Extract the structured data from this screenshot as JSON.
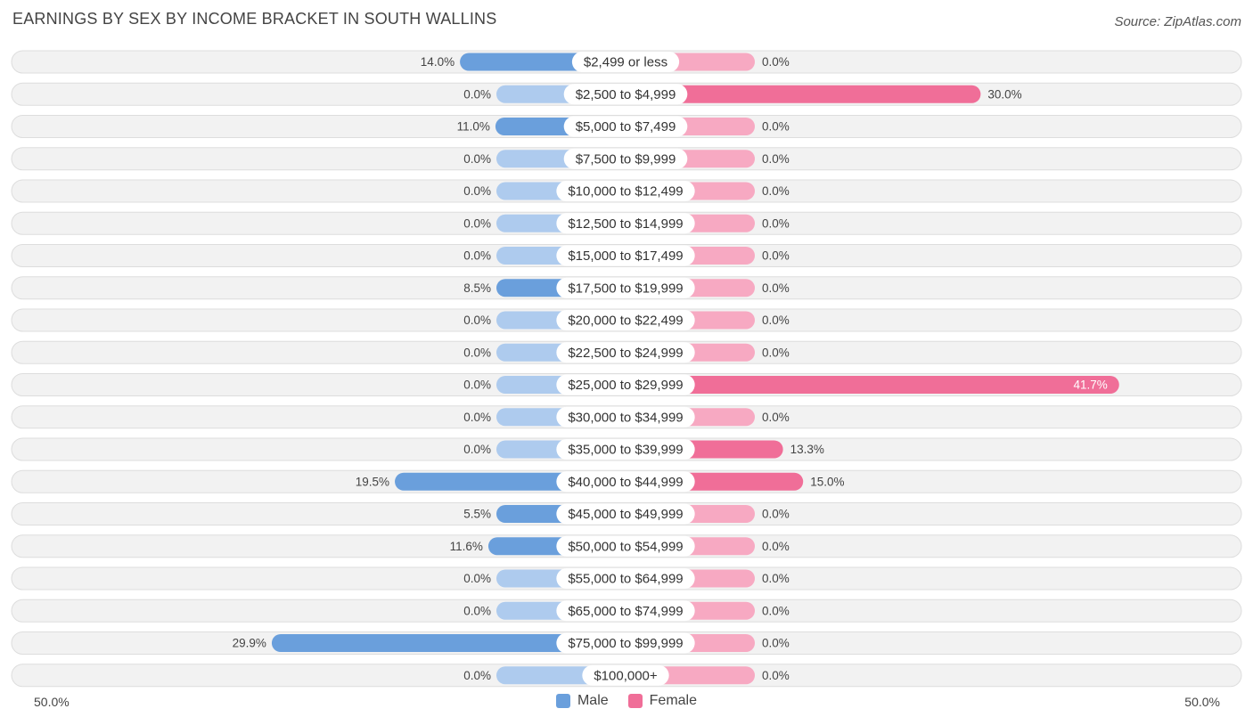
{
  "title": "EARNINGS BY SEX BY INCOME BRACKET IN SOUTH WALLINS",
  "source": "Source: ZipAtlas.com",
  "axis": {
    "left_label": "50.0%",
    "right_label": "50.0%"
  },
  "legend": [
    {
      "name": "Male",
      "color": "#6a9fdc"
    },
    {
      "name": "Female",
      "color": "#f06e98"
    }
  ],
  "colors": {
    "male_strong": "#6a9fdc",
    "male_light": "#aecbee",
    "female_strong": "#f06e98",
    "female_light": "#f7a9c2"
  },
  "chart_data": {
    "type": "bar",
    "orientation": "horizontal-diverging",
    "title": "EARNINGS BY SEX BY INCOME BRACKET IN SOUTH WALLINS",
    "xlim": [
      -50,
      50
    ],
    "categories": [
      "$2,499 or less",
      "$2,500 to $4,999",
      "$5,000 to $7,499",
      "$7,500 to $9,999",
      "$10,000 to $12,499",
      "$12,500 to $14,999",
      "$15,000 to $17,499",
      "$17,500 to $19,999",
      "$20,000 to $22,499",
      "$22,500 to $24,999",
      "$25,000 to $29,999",
      "$30,000 to $34,999",
      "$35,000 to $39,999",
      "$40,000 to $44,999",
      "$45,000 to $49,999",
      "$50,000 to $54,999",
      "$55,000 to $64,999",
      "$65,000 to $74,999",
      "$75,000 to $99,999",
      "$100,000+"
    ],
    "series": [
      {
        "name": "Male",
        "values": [
          14.0,
          0.0,
          11.0,
          0.0,
          0.0,
          0.0,
          0.0,
          8.5,
          0.0,
          0.0,
          0.0,
          0.0,
          0.0,
          19.5,
          5.5,
          11.6,
          0.0,
          0.0,
          29.9,
          0.0
        ]
      },
      {
        "name": "Female",
        "values": [
          0.0,
          30.0,
          0.0,
          0.0,
          0.0,
          0.0,
          0.0,
          0.0,
          0.0,
          0.0,
          41.7,
          0.0,
          13.3,
          15.0,
          0.0,
          0.0,
          0.0,
          0.0,
          0.0,
          0.0
        ]
      }
    ],
    "value_labels": {
      "Male": [
        "14.0%",
        "0.0%",
        "11.0%",
        "0.0%",
        "0.0%",
        "0.0%",
        "0.0%",
        "8.5%",
        "0.0%",
        "0.0%",
        "0.0%",
        "0.0%",
        "0.0%",
        "19.5%",
        "5.5%",
        "11.6%",
        "0.0%",
        "0.0%",
        "29.9%",
        "0.0%"
      ],
      "Female": [
        "0.0%",
        "30.0%",
        "0.0%",
        "0.0%",
        "0.0%",
        "0.0%",
        "0.0%",
        "0.0%",
        "0.0%",
        "0.0%",
        "41.7%",
        "0.0%",
        "13.3%",
        "15.0%",
        "0.0%",
        "0.0%",
        "0.0%",
        "0.0%",
        "0.0%",
        "0.0%"
      ]
    }
  }
}
